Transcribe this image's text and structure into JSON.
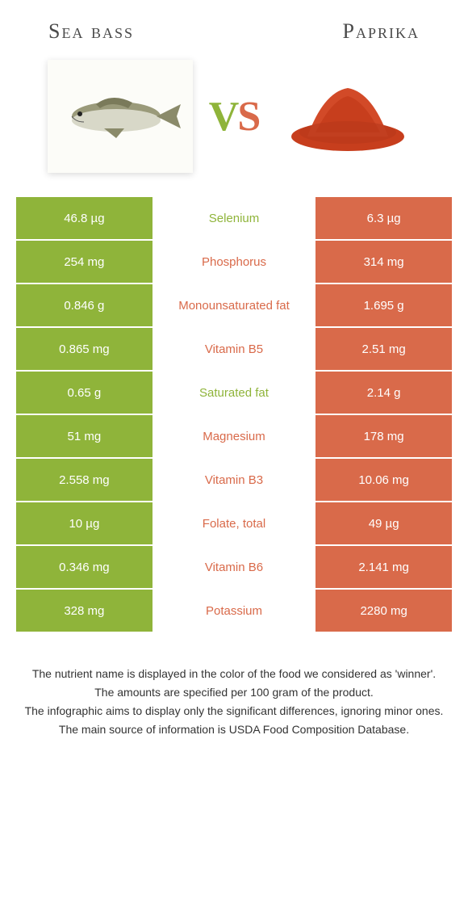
{
  "header": {
    "left_title": "Sea bass",
    "right_title": "Paprika"
  },
  "vs": {
    "v": "V",
    "s": "S"
  },
  "colors": {
    "left": "#8fb43a",
    "right": "#d96a4a",
    "text_dark": "#333333"
  },
  "rows": [
    {
      "left": "46.8 µg",
      "label": "Selenium",
      "right": "6.3 µg",
      "winner": "left"
    },
    {
      "left": "254 mg",
      "label": "Phosphorus",
      "right": "314 mg",
      "winner": "right"
    },
    {
      "left": "0.846 g",
      "label": "Monounsaturated fat",
      "right": "1.695 g",
      "winner": "right"
    },
    {
      "left": "0.865 mg",
      "label": "Vitamin B5",
      "right": "2.51 mg",
      "winner": "right"
    },
    {
      "left": "0.65 g",
      "label": "Saturated fat",
      "right": "2.14 g",
      "winner": "left"
    },
    {
      "left": "51 mg",
      "label": "Magnesium",
      "right": "178 mg",
      "winner": "right"
    },
    {
      "left": "2.558 mg",
      "label": "Vitamin B3",
      "right": "10.06 mg",
      "winner": "right"
    },
    {
      "left": "10 µg",
      "label": "Folate, total",
      "right": "49 µg",
      "winner": "right"
    },
    {
      "left": "0.346 mg",
      "label": "Vitamin B6",
      "right": "2.141 mg",
      "winner": "right"
    },
    {
      "left": "328 mg",
      "label": "Potassium",
      "right": "2280 mg",
      "winner": "right"
    }
  ],
  "footer": {
    "line1": "The nutrient name is displayed in the color of the food we considered as 'winner'.",
    "line2": "The amounts are specified per 100 gram of the product.",
    "line3": "The infographic aims to display only the significant differences, ignoring minor ones.",
    "line4": "The main source of information is USDA Food Composition Database."
  }
}
